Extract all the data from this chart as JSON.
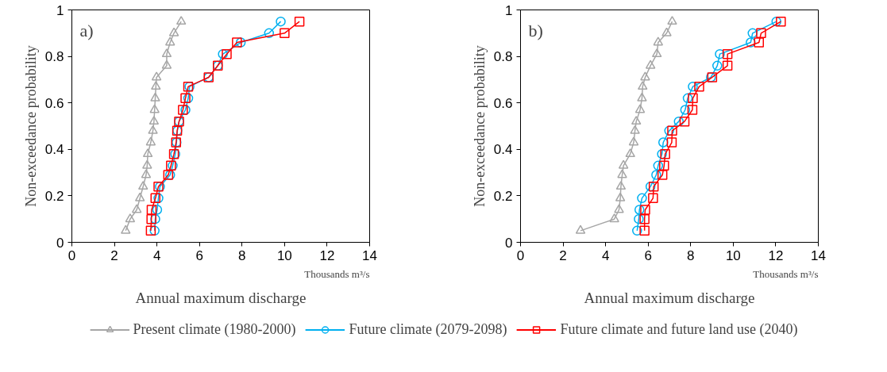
{
  "chart_data": [
    {
      "type": "line",
      "title": "a)",
      "xlabel": "Annual maximum discharge",
      "ylabel": "Non-exceedance probability",
      "annotations": [
        "Thousands m³/s"
      ],
      "xlim": [
        0,
        14
      ],
      "xticks": [
        0,
        2,
        4,
        6,
        8,
        10,
        12,
        14
      ],
      "ylim": [
        0,
        1
      ],
      "yticks": [
        0,
        0.2,
        0.4,
        0.6,
        0.8,
        1
      ],
      "grid": false,
      "legend": "bottom",
      "series": [
        {
          "name": "Present climate (1980-2000)",
          "color": "#a6a6a6",
          "marker": "triangle",
          "x": [
            2.53,
            2.74,
            3.05,
            3.2,
            3.35,
            3.49,
            3.54,
            3.57,
            3.71,
            3.81,
            3.86,
            3.89,
            3.92,
            3.95,
            3.98,
            4.46,
            4.46,
            4.62,
            4.8,
            5.14
          ],
          "values": [
            0.05,
            0.1,
            0.14,
            0.19,
            0.24,
            0.29,
            0.33,
            0.38,
            0.43,
            0.48,
            0.52,
            0.57,
            0.62,
            0.67,
            0.71,
            0.76,
            0.81,
            0.86,
            0.9,
            0.95
          ]
        },
        {
          "name": "Future climate (2079-2098)",
          "color": "#00b0f0",
          "marker": "circle",
          "x": [
            3.89,
            3.92,
            4.01,
            4.07,
            4.14,
            4.62,
            4.74,
            4.86,
            4.92,
            4.96,
            5.04,
            5.34,
            5.47,
            5.53,
            6.43,
            6.86,
            7.1,
            7.94,
            9.27,
            9.82
          ],
          "values": [
            0.05,
            0.1,
            0.14,
            0.19,
            0.24,
            0.29,
            0.33,
            0.38,
            0.43,
            0.48,
            0.52,
            0.57,
            0.62,
            0.67,
            0.71,
            0.76,
            0.81,
            0.86,
            0.9,
            0.95
          ]
        },
        {
          "name": "Future climate and future land use (2040)",
          "color": "#ff0000",
          "marker": "square",
          "x": [
            3.71,
            3.74,
            3.75,
            3.93,
            4.07,
            4.53,
            4.66,
            4.8,
            4.9,
            4.95,
            5.04,
            5.22,
            5.34,
            5.47,
            6.43,
            6.86,
            7.28,
            7.76,
            10.0,
            10.7
          ],
          "values": [
            0.05,
            0.1,
            0.14,
            0.19,
            0.24,
            0.29,
            0.33,
            0.38,
            0.43,
            0.48,
            0.52,
            0.57,
            0.62,
            0.67,
            0.71,
            0.76,
            0.81,
            0.86,
            0.9,
            0.95
          ]
        }
      ]
    },
    {
      "type": "line",
      "title": "b)",
      "xlabel": "Annual maximum discharge",
      "ylabel": "Non-exceedance probability",
      "annotations": [
        "Thousands m³/s"
      ],
      "xlim": [
        0,
        14
      ],
      "xticks": [
        0,
        2,
        4,
        6,
        8,
        10,
        12,
        14
      ],
      "ylim": [
        0,
        1
      ],
      "yticks": [
        0,
        0.2,
        0.4,
        0.6,
        0.8,
        1
      ],
      "grid": false,
      "series": [
        {
          "color": "#a6a6a6",
          "marker": "triangle",
          "x": [
            2.82,
            4.41,
            4.63,
            4.69,
            4.72,
            4.78,
            4.84,
            5.16,
            5.32,
            5.38,
            5.44,
            5.62,
            5.71,
            5.74,
            5.86,
            6.11,
            6.41,
            6.47,
            6.87,
            7.13
          ],
          "values": [
            0.05,
            0.1,
            0.14,
            0.19,
            0.24,
            0.29,
            0.33,
            0.38,
            0.43,
            0.48,
            0.52,
            0.57,
            0.62,
            0.67,
            0.71,
            0.76,
            0.81,
            0.86,
            0.9,
            0.95
          ]
        },
        {
          "color": "#00b0f0",
          "marker": "circle",
          "x": [
            5.48,
            5.56,
            5.59,
            5.71,
            6.11,
            6.38,
            6.47,
            6.65,
            6.71,
            6.99,
            7.44,
            7.74,
            7.86,
            8.1,
            8.95,
            9.25,
            9.37,
            10.82,
            10.91,
            12.03
          ],
          "values": [
            0.05,
            0.1,
            0.14,
            0.19,
            0.24,
            0.29,
            0.33,
            0.38,
            0.43,
            0.48,
            0.52,
            0.57,
            0.62,
            0.67,
            0.71,
            0.76,
            0.81,
            0.86,
            0.9,
            0.95
          ]
        },
        {
          "color": "#ff0000",
          "marker": "square",
          "x": [
            5.83,
            5.83,
            5.86,
            6.23,
            6.26,
            6.67,
            6.75,
            6.8,
            7.11,
            7.13,
            7.71,
            8.08,
            8.1,
            8.4,
            9.01,
            9.73,
            9.73,
            11.21,
            11.31,
            12.24
          ],
          "values": [
            0.05,
            0.1,
            0.14,
            0.19,
            0.24,
            0.29,
            0.33,
            0.38,
            0.43,
            0.48,
            0.52,
            0.57,
            0.62,
            0.67,
            0.71,
            0.76,
            0.81,
            0.86,
            0.9,
            0.95
          ]
        }
      ]
    }
  ]
}
